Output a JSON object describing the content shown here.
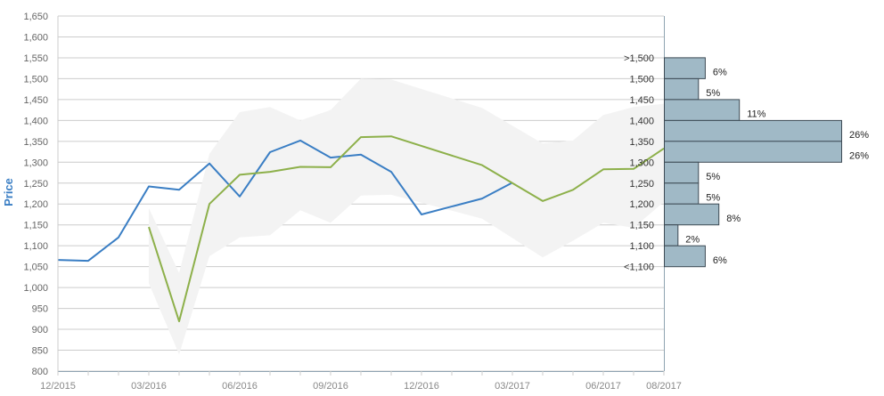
{
  "chart_data": {
    "type": "line",
    "ylabel": "Price",
    "ylim": [
      800,
      1650
    ],
    "yticks": [
      800,
      850,
      900,
      950,
      1000,
      1050,
      1100,
      1150,
      1200,
      1250,
      1300,
      1350,
      1400,
      1450,
      1500,
      1550,
      1600,
      1650
    ],
    "ytick_labels": [
      "800",
      "850",
      "900",
      "950",
      "1,000",
      "1,050",
      "1,100",
      "1,150",
      "1,200",
      "1,250",
      "1,300",
      "1,350",
      "1,400",
      "1,450",
      "1,500",
      "1,550",
      "1,600",
      "1,650"
    ],
    "xlim": [
      "2015-12",
      "2017-08"
    ],
    "xticks": [
      {
        "date": "2015-12",
        "label": "12/2015"
      },
      {
        "date": "2016-03",
        "label": "03/2016"
      },
      {
        "date": "2016-06",
        "label": "06/2016"
      },
      {
        "date": "2016-09",
        "label": "09/2016"
      },
      {
        "date": "2016-12",
        "label": "12/2016"
      },
      {
        "date": "2017-03",
        "label": "03/2017"
      },
      {
        "date": "2017-06",
        "label": "06/2017"
      },
      {
        "date": "2017-08",
        "label": "08/2017"
      }
    ],
    "grid": true,
    "colors": {
      "series1": "#3a7ec4",
      "series2": "#8db04a",
      "band": "#f3f3f3",
      "bar_fill": "#a0b9c6",
      "bar_stroke": "#3d4a54",
      "grid": "#cccccc",
      "axis": "#8fa3b1",
      "ylabel": "#3a7ec4"
    },
    "series": [
      {
        "values": [
          {
            "x": "2015-12",
            "y": 1066
          },
          {
            "x": "2016-01",
            "y": 1064
          },
          {
            "x": "2016-02",
            "y": 1120
          },
          {
            "x": "2016-03",
            "y": 1242
          },
          {
            "x": "2016-04",
            "y": 1234
          },
          {
            "x": "2016-05",
            "y": 1297
          },
          {
            "x": "2016-06",
            "y": 1218
          },
          {
            "x": "2016-07",
            "y": 1324
          },
          {
            "x": "2016-08",
            "y": 1352
          },
          {
            "x": "2016-09",
            "y": 1311
          },
          {
            "x": "2016-10",
            "y": 1318
          },
          {
            "x": "2016-11",
            "y": 1277
          },
          {
            "x": "2016-12",
            "y": 1175
          },
          {
            "x": "2017-02",
            "y": 1213
          },
          {
            "x": "2017-03",
            "y": 1251
          }
        ]
      },
      {
        "values": [
          {
            "x": "2016-03",
            "y": 1145
          },
          {
            "x": "2016-04",
            "y": 919
          },
          {
            "x": "2016-05",
            "y": 1200
          },
          {
            "x": "2016-06",
            "y": 1270
          },
          {
            "x": "2016-07",
            "y": 1277
          },
          {
            "x": "2016-08",
            "y": 1289
          },
          {
            "x": "2016-09",
            "y": 1288
          },
          {
            "x": "2016-10",
            "y": 1360
          },
          {
            "x": "2016-11",
            "y": 1362
          },
          {
            "x": "2017-02",
            "y": 1293
          },
          {
            "x": "2017-04",
            "y": 1207
          },
          {
            "x": "2017-05",
            "y": 1234
          },
          {
            "x": "2017-06",
            "y": 1283
          },
          {
            "x": "2017-07",
            "y": 1284
          },
          {
            "x": "2017-08",
            "y": 1333
          }
        ]
      }
    ],
    "band": [
      {
        "x": "2016-03",
        "low": 1010,
        "high": 1190
      },
      {
        "x": "2016-04",
        "low": 840,
        "high": 1035
      },
      {
        "x": "2016-05",
        "low": 1075,
        "high": 1320
      },
      {
        "x": "2016-06",
        "low": 1120,
        "high": 1420
      },
      {
        "x": "2016-07",
        "low": 1125,
        "high": 1432
      },
      {
        "x": "2016-08",
        "low": 1185,
        "high": 1400
      },
      {
        "x": "2016-09",
        "low": 1155,
        "high": 1425
      },
      {
        "x": "2016-10",
        "low": 1220,
        "high": 1500
      },
      {
        "x": "2016-11",
        "low": 1222,
        "high": 1498
      },
      {
        "x": "2017-02",
        "low": 1165,
        "high": 1430
      },
      {
        "x": "2017-04",
        "low": 1072,
        "high": 1345
      },
      {
        "x": "2017-05",
        "low": 1112,
        "high": 1352
      },
      {
        "x": "2017-06",
        "low": 1155,
        "high": 1413
      },
      {
        "x": "2017-07",
        "low": 1143,
        "high": 1432
      },
      {
        "x": "2017-08",
        "low": 1205,
        "high": 1440
      }
    ],
    "distribution": [
      {
        "label": ">1,500",
        "pct": "6%",
        "value": 6,
        "low": 1500,
        "high": 1550
      },
      {
        "label": "1,500",
        "pct": "5%",
        "value": 5,
        "low": 1450,
        "high": 1500
      },
      {
        "label": "1,450",
        "pct": "11%",
        "value": 11,
        "low": 1400,
        "high": 1450
      },
      {
        "label": "1,400",
        "pct": "26%",
        "value": 26,
        "low": 1350,
        "high": 1400
      },
      {
        "label": "1,350",
        "pct": "26%",
        "value": 26,
        "low": 1300,
        "high": 1350
      },
      {
        "label": "1,300",
        "pct": "5%",
        "value": 5,
        "low": 1250,
        "high": 1300
      },
      {
        "label": "1,250",
        "pct": "5%",
        "value": 5,
        "low": 1200,
        "high": 1250
      },
      {
        "label": "1,200",
        "pct": "8%",
        "value": 8,
        "low": 1150,
        "high": 1200
      },
      {
        "label": "1,150",
        "pct": "2%",
        "value": 2,
        "low": 1100,
        "high": 1150
      },
      {
        "label": "1,100",
        "pct": "6%",
        "value": 6,
        "low": 1050,
        "high": 1100
      },
      {
        "label": "<1,100",
        "pct": "",
        "value": null,
        "low": null,
        "high": 1050
      }
    ]
  }
}
